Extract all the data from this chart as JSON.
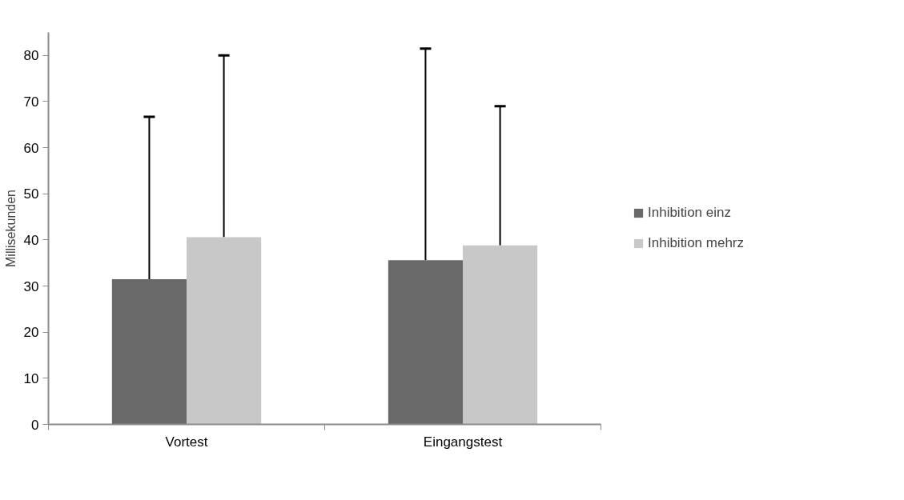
{
  "chart_data": {
    "type": "bar",
    "ylabel": "Millisekunden",
    "categories": [
      "Vortest",
      "Eingangstest"
    ],
    "series": [
      {
        "name": "Inhibition einz",
        "color": "#696969",
        "values": [
          31.5,
          35.6
        ],
        "errors": [
          [
            31.5,
            66.7
          ],
          [
            35.6,
            81.5
          ]
        ]
      },
      {
        "name": "Inhibition mehrz",
        "color": "#c8c8c8",
        "values": [
          40.6,
          38.8
        ],
        "errors": [
          [
            40.6,
            80.0
          ],
          [
            38.8,
            69.0
          ]
        ]
      }
    ],
    "ylim": [
      0,
      85
    ],
    "yticks": [
      0,
      10,
      20,
      30,
      40,
      50,
      60,
      70,
      80
    ],
    "grid": false,
    "legend": "right"
  }
}
